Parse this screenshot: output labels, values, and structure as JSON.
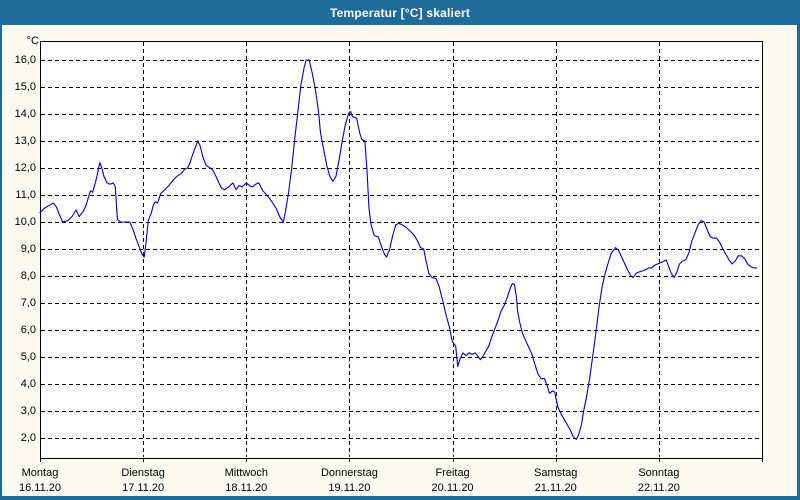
{
  "window": {
    "title": "Temperatur [°C] skaliert",
    "titlebar_color": "#1f6b99",
    "body_color": "#fbfbf2",
    "plot_bg_color": "#fefefe"
  },
  "chart_data": {
    "type": "line",
    "title": "Temperatur [°C] skaliert",
    "xlabel": "",
    "ylabel": "°C",
    "ylim": [
      1.26,
      16.7
    ],
    "x_range_days": 7,
    "grid": "dashed-black",
    "legend": "none",
    "line_color": "#0000cc",
    "y_ticks": [
      {
        "v": 16,
        "label": "16,0"
      },
      {
        "v": 15,
        "label": "15,0"
      },
      {
        "v": 14,
        "label": "14,0"
      },
      {
        "v": 13,
        "label": "13,0"
      },
      {
        "v": 12,
        "label": "12,0"
      },
      {
        "v": 11,
        "label": "11,0"
      },
      {
        "v": 10,
        "label": "10,0"
      },
      {
        "v": 9,
        "label": "9,0"
      },
      {
        "v": 8,
        "label": "8,0"
      },
      {
        "v": 7,
        "label": "7,0"
      },
      {
        "v": 6,
        "label": "6,0"
      },
      {
        "v": 5,
        "label": "5,0"
      },
      {
        "v": 4,
        "label": "4,0"
      },
      {
        "v": 3,
        "label": "3,0"
      },
      {
        "v": 2,
        "label": "2,0"
      }
    ],
    "x_ticks": [
      {
        "day": "Montag",
        "date": "16.11.20"
      },
      {
        "day": "Dienstag",
        "date": "17.11.20"
      },
      {
        "day": "Mittwoch",
        "date": "18.11.20"
      },
      {
        "day": "Donnerstag",
        "date": "19.11.20"
      },
      {
        "day": "Freitag",
        "date": "20.11.20"
      },
      {
        "day": "Samstag",
        "date": "21.11.20"
      },
      {
        "day": "Sonntag",
        "date": "22.11.20"
      }
    ],
    "series": [
      {
        "name": "Temperatur",
        "color": "#0000cc",
        "points": [
          [
            0,
            10.35
          ],
          [
            0.04,
            10.5
          ],
          [
            0.08,
            10.6
          ],
          [
            0.13,
            10.7
          ],
          [
            0.16,
            10.55
          ],
          [
            0.19,
            10.25
          ],
          [
            0.22,
            10.0
          ],
          [
            0.27,
            10.05
          ],
          [
            0.31,
            10.2
          ],
          [
            0.35,
            10.45
          ],
          [
            0.38,
            10.2
          ],
          [
            0.42,
            10.4
          ],
          [
            0.45,
            10.65
          ],
          [
            0.48,
            11.05
          ],
          [
            0.49,
            11.15
          ],
          [
            0.51,
            11.1
          ],
          [
            0.54,
            11.5
          ],
          [
            0.56,
            11.85
          ],
          [
            0.58,
            12.2
          ],
          [
            0.6,
            12.0
          ],
          [
            0.62,
            11.7
          ],
          [
            0.65,
            11.45
          ],
          [
            0.68,
            11.4
          ],
          [
            0.71,
            11.45
          ],
          [
            0.73,
            11.3
          ],
          [
            0.75,
            10.1
          ],
          [
            0.78,
            10.0
          ],
          [
            0.87,
            10.0
          ],
          [
            0.9,
            9.75
          ],
          [
            0.93,
            9.4
          ],
          [
            0.96,
            9.1
          ],
          [
            0.99,
            8.8
          ],
          [
            1.01,
            8.7
          ],
          [
            1.03,
            9.3
          ],
          [
            1.05,
            10.05
          ],
          [
            1.08,
            10.35
          ],
          [
            1.1,
            10.65
          ],
          [
            1.12,
            10.75
          ],
          [
            1.14,
            10.7
          ],
          [
            1.17,
            11.05
          ],
          [
            1.21,
            11.2
          ],
          [
            1.25,
            11.35
          ],
          [
            1.29,
            11.55
          ],
          [
            1.33,
            11.7
          ],
          [
            1.37,
            11.8
          ],
          [
            1.4,
            11.95
          ],
          [
            1.43,
            12.0
          ],
          [
            1.45,
            12.15
          ],
          [
            1.48,
            12.5
          ],
          [
            1.51,
            12.8
          ],
          [
            1.53,
            13.0
          ],
          [
            1.55,
            12.85
          ],
          [
            1.58,
            12.4
          ],
          [
            1.61,
            12.1
          ],
          [
            1.65,
            12.0
          ],
          [
            1.68,
            11.9
          ],
          [
            1.71,
            11.65
          ],
          [
            1.74,
            11.4
          ],
          [
            1.76,
            11.25
          ],
          [
            1.79,
            11.2
          ],
          [
            1.83,
            11.3
          ],
          [
            1.87,
            11.45
          ],
          [
            1.9,
            11.2
          ],
          [
            1.93,
            11.35
          ],
          [
            1.96,
            11.3
          ],
          [
            2.0,
            11.45
          ],
          [
            2.03,
            11.35
          ],
          [
            2.06,
            11.3
          ],
          [
            2.09,
            11.4
          ],
          [
            2.12,
            11.45
          ],
          [
            2.16,
            11.15
          ],
          [
            2.2,
            11.0
          ],
          [
            2.24,
            10.8
          ],
          [
            2.29,
            10.5
          ],
          [
            2.33,
            10.15
          ],
          [
            2.36,
            10.0
          ],
          [
            2.38,
            10.4
          ],
          [
            2.41,
            11.1
          ],
          [
            2.44,
            12.0
          ],
          [
            2.47,
            13.1
          ],
          [
            2.5,
            14.1
          ],
          [
            2.53,
            15.1
          ],
          [
            2.56,
            15.7
          ],
          [
            2.58,
            16.0
          ],
          [
            2.61,
            16.0
          ],
          [
            2.64,
            15.5
          ],
          [
            2.67,
            14.9
          ],
          [
            2.7,
            14.1
          ],
          [
            2.72,
            13.3
          ],
          [
            2.75,
            12.7
          ],
          [
            2.78,
            12.1
          ],
          [
            2.81,
            11.7
          ],
          [
            2.84,
            11.5
          ],
          [
            2.87,
            11.7
          ],
          [
            2.9,
            12.3
          ],
          [
            2.93,
            13.0
          ],
          [
            2.96,
            13.6
          ],
          [
            2.99,
            14.0
          ],
          [
            3.01,
            14.1
          ],
          [
            3.03,
            13.9
          ],
          [
            3.07,
            13.85
          ],
          [
            3.1,
            13.3
          ],
          [
            3.12,
            13.05
          ],
          [
            3.15,
            13.0
          ],
          [
            3.17,
            11.9
          ],
          [
            3.19,
            10.5
          ],
          [
            3.21,
            9.9
          ],
          [
            3.24,
            9.5
          ],
          [
            3.28,
            9.45
          ],
          [
            3.31,
            9.1
          ],
          [
            3.34,
            8.8
          ],
          [
            3.36,
            8.7
          ],
          [
            3.39,
            9.0
          ],
          [
            3.42,
            9.5
          ],
          [
            3.45,
            9.9
          ],
          [
            3.48,
            9.95
          ],
          [
            3.51,
            9.9
          ],
          [
            3.55,
            9.8
          ],
          [
            3.59,
            9.65
          ],
          [
            3.63,
            9.5
          ],
          [
            3.66,
            9.3
          ],
          [
            3.69,
            9.05
          ],
          [
            3.72,
            9.0
          ],
          [
            3.74,
            8.6
          ],
          [
            3.77,
            8.1
          ],
          [
            3.8,
            7.95
          ],
          [
            3.84,
            7.9
          ],
          [
            3.87,
            7.6
          ],
          [
            3.91,
            7.0
          ],
          [
            3.94,
            6.5
          ],
          [
            3.97,
            6.1
          ],
          [
            3.99,
            5.7
          ],
          [
            4.0,
            5.55
          ],
          [
            4.03,
            5.4
          ],
          [
            4.05,
            4.65
          ],
          [
            4.07,
            4.9
          ],
          [
            4.1,
            5.15
          ],
          [
            4.13,
            5.05
          ],
          [
            4.16,
            5.15
          ],
          [
            4.19,
            5.1
          ],
          [
            4.22,
            5.15
          ],
          [
            4.25,
            5.0
          ],
          [
            4.27,
            4.9
          ],
          [
            4.3,
            5.05
          ],
          [
            4.32,
            5.2
          ],
          [
            4.35,
            5.4
          ],
          [
            4.38,
            5.75
          ],
          [
            4.41,
            6.05
          ],
          [
            4.44,
            6.35
          ],
          [
            4.47,
            6.7
          ],
          [
            4.5,
            6.9
          ],
          [
            4.53,
            7.2
          ],
          [
            4.56,
            7.55
          ],
          [
            4.58,
            7.72
          ],
          [
            4.6,
            7.68
          ],
          [
            4.62,
            7.2
          ],
          [
            4.63,
            6.7
          ],
          [
            4.65,
            6.3
          ],
          [
            4.68,
            5.85
          ],
          [
            4.71,
            5.6
          ],
          [
            4.74,
            5.35
          ],
          [
            4.77,
            5.1
          ],
          [
            4.8,
            4.7
          ],
          [
            4.83,
            4.35
          ],
          [
            4.86,
            4.2
          ],
          [
            4.89,
            4.2
          ],
          [
            4.92,
            3.9
          ],
          [
            4.94,
            3.65
          ],
          [
            4.97,
            3.75
          ],
          [
            4.99,
            3.7
          ],
          [
            5.02,
            3.15
          ],
          [
            5.05,
            2.9
          ],
          [
            5.08,
            2.7
          ],
          [
            5.11,
            2.5
          ],
          [
            5.14,
            2.3
          ],
          [
            5.17,
            2.05
          ],
          [
            5.2,
            1.95
          ],
          [
            5.22,
            2.1
          ],
          [
            5.25,
            2.5
          ],
          [
            5.27,
            3.0
          ],
          [
            5.3,
            3.55
          ],
          [
            5.33,
            4.25
          ],
          [
            5.36,
            5.05
          ],
          [
            5.39,
            5.9
          ],
          [
            5.42,
            6.85
          ],
          [
            5.45,
            7.6
          ],
          [
            5.48,
            8.1
          ],
          [
            5.51,
            8.5
          ],
          [
            5.54,
            8.85
          ],
          [
            5.57,
            9.0
          ],
          [
            5.58,
            9.05
          ],
          [
            5.61,
            8.95
          ],
          [
            5.64,
            8.7
          ],
          [
            5.67,
            8.45
          ],
          [
            5.7,
            8.2
          ],
          [
            5.73,
            8.0
          ],
          [
            5.75,
            7.95
          ],
          [
            5.78,
            8.1
          ],
          [
            5.81,
            8.15
          ],
          [
            5.85,
            8.2
          ],
          [
            5.88,
            8.25
          ],
          [
            5.9,
            8.3
          ],
          [
            5.93,
            8.3
          ],
          [
            5.96,
            8.4
          ],
          [
            5.99,
            8.45
          ],
          [
            6.02,
            8.5
          ],
          [
            6.05,
            8.55
          ],
          [
            6.07,
            8.6
          ],
          [
            6.1,
            8.3
          ],
          [
            6.12,
            8.1
          ],
          [
            6.15,
            7.95
          ],
          [
            6.18,
            8.2
          ],
          [
            6.2,
            8.45
          ],
          [
            6.23,
            8.55
          ],
          [
            6.26,
            8.6
          ],
          [
            6.29,
            8.85
          ],
          [
            6.32,
            9.3
          ],
          [
            6.35,
            9.6
          ],
          [
            6.38,
            9.9
          ],
          [
            6.41,
            10.05
          ],
          [
            6.44,
            10.0
          ],
          [
            6.47,
            9.7
          ],
          [
            6.5,
            9.45
          ],
          [
            6.53,
            9.4
          ],
          [
            6.56,
            9.4
          ],
          [
            6.59,
            9.25
          ],
          [
            6.62,
            9.0
          ],
          [
            6.65,
            8.8
          ],
          [
            6.68,
            8.6
          ],
          [
            6.71,
            8.45
          ],
          [
            6.74,
            8.55
          ],
          [
            6.77,
            8.75
          ],
          [
            6.8,
            8.75
          ],
          [
            6.83,
            8.65
          ],
          [
            6.86,
            8.45
          ],
          [
            6.89,
            8.35
          ],
          [
            6.92,
            8.3
          ],
          [
            6.95,
            8.3
          ]
        ]
      }
    ]
  }
}
